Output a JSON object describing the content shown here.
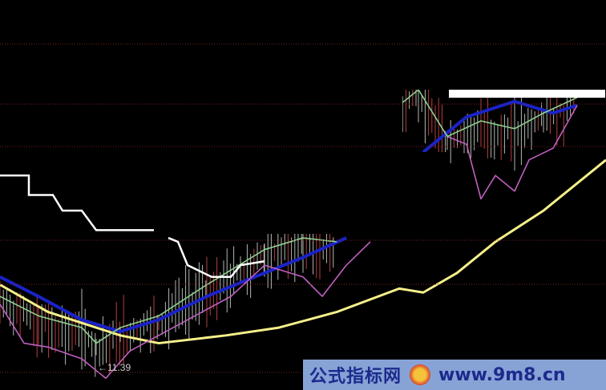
{
  "chart_data": {
    "type": "line",
    "title": "",
    "x_range": [
      0,
      126
    ],
    "y_range": [
      0,
      100
    ],
    "grid": "dotted horizontal",
    "annotations": [
      {
        "text": "←11.39",
        "x": 21,
        "y": 6
      }
    ],
    "series": [
      {
        "color": "#f5f08a",
        "segments": [
          [
            [
              0,
              27
            ],
            [
              10,
              20
            ],
            [
              25,
              14
            ],
            [
              33,
              12
            ],
            [
              47,
              14
            ],
            [
              58,
              16
            ],
            [
              70,
              20
            ],
            [
              83,
              26
            ],
            [
              88,
              25
            ],
            [
              95,
              30
            ],
            [
              103,
              38
            ],
            [
              113,
              46
            ],
            [
              126,
              59
            ]
          ]
        ]
      },
      {
        "color": "#1a23c8",
        "segments": [
          [
            [
              0,
              29
            ],
            [
              8,
              24
            ],
            [
              17,
              18
            ],
            [
              25,
              15
            ],
            [
              33,
              18
            ],
            [
              43,
              24
            ],
            [
              53,
              29
            ],
            [
              63,
              34
            ],
            [
              72,
              39
            ]
          ],
          [
            [
              88,
              61
            ],
            [
              97,
              70
            ],
            [
              107,
              74
            ],
            [
              115,
              71
            ],
            [
              120,
              73
            ]
          ]
        ]
      },
      {
        "color": "#c060c0",
        "segments": [
          [
            [
              0,
              22
            ],
            [
              5,
              12
            ],
            [
              10,
              11
            ],
            [
              17,
              8
            ],
            [
              22,
              3
            ],
            [
              27,
              10
            ],
            [
              33,
              14
            ],
            [
              48,
              24
            ],
            [
              55,
              32
            ],
            [
              63,
              29
            ],
            [
              67,
              24
            ],
            [
              72,
              32
            ],
            [
              77,
              38
            ]
          ],
          [
            [
              93,
              65
            ],
            [
              97,
              63
            ],
            [
              100,
              49
            ],
            [
              103,
              55
            ],
            [
              107,
              51
            ],
            [
              110,
              59
            ],
            [
              115,
              62
            ],
            [
              120,
              73
            ]
          ]
        ]
      },
      {
        "color": "#8fd08f",
        "segments": [
          [
            [
              0,
              24
            ],
            [
              8,
              19
            ],
            [
              17,
              16
            ],
            [
              20,
              12
            ],
            [
              25,
              16
            ],
            [
              33,
              19
            ],
            [
              43,
              27
            ],
            [
              55,
              36
            ],
            [
              63,
              39
            ],
            [
              70,
              38
            ]
          ],
          [
            [
              83,
              73
            ],
            [
              87,
              77
            ],
            [
              93,
              65
            ],
            [
              100,
              69
            ],
            [
              107,
              67
            ],
            [
              113,
              71
            ],
            [
              120,
              75
            ]
          ]
        ]
      },
      {
        "color": "#ffffff",
        "segments": [
          [
            [
              0,
              55
            ],
            [
              6,
              55
            ],
            [
              6,
              50
            ],
            [
              11,
              50
            ],
            [
              13,
              46
            ],
            [
              17,
              46
            ],
            [
              20,
              41
            ],
            [
              32,
              41
            ]
          ],
          [
            [
              35,
              39
            ],
            [
              37,
              38
            ],
            [
              39,
              32
            ],
            [
              44,
              29
            ],
            [
              48,
              29
            ],
            [
              50,
              32
            ],
            [
              55,
              33
            ]
          ]
        ]
      }
    ]
  },
  "watermark": {
    "site_name": "公式指标网",
    "url": "www.9m8.cn"
  }
}
